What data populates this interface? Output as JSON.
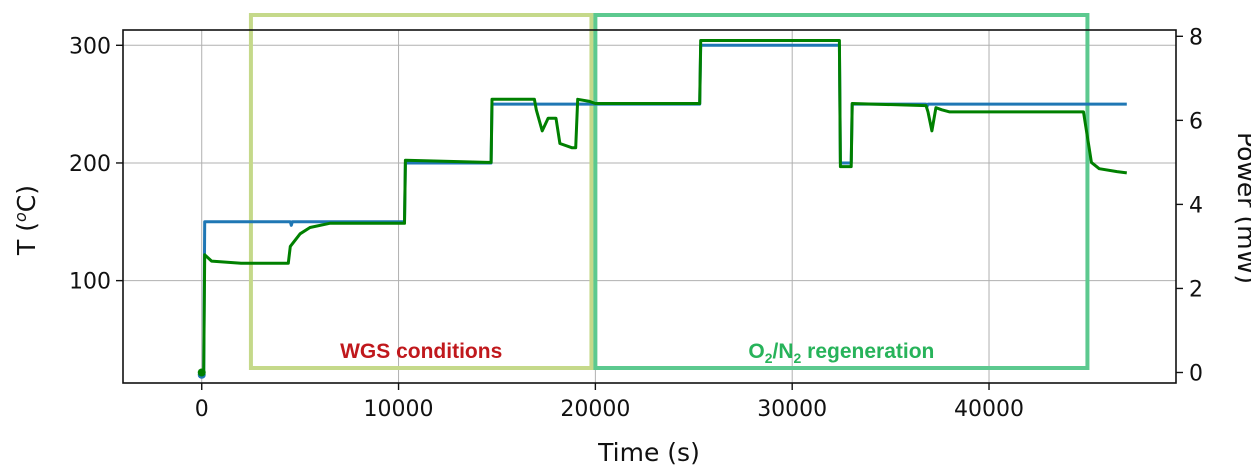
{
  "chart_data": {
    "type": "line",
    "xlabel": "Time (s)",
    "ylabel_left": {
      "main": "T (",
      "sup": "o",
      "unit": "C)"
    },
    "ylabel_right": "Power (mW)",
    "xlim": [
      -4000,
      49500
    ],
    "ylim_left": [
      13,
      313
    ],
    "ylim_right": [
      -0.25,
      8.15
    ],
    "x_ticks": [
      0,
      10000,
      20000,
      30000,
      40000
    ],
    "y_ticks_left": [
      100,
      200,
      300
    ],
    "y_ticks_right": [
      0,
      2,
      4,
      6,
      8
    ],
    "grid": true,
    "colors": {
      "temperature": "#1f77b4",
      "power": "#008000",
      "wgs_box": "#c5d98a",
      "regen_box": "#5cc98f",
      "wgs_text": "#c0181c",
      "regen_text": "#27b35a"
    },
    "regions": [
      {
        "x_start": 2500,
        "x_end": 19800,
        "color": "#c5d98a",
        "label_parts": [
          {
            "t": "WGS conditions"
          }
        ],
        "label_color": "#c0181c"
      },
      {
        "x_start": 20000,
        "x_end": 45000,
        "color": "#5cc98f",
        "label_parts": [
          {
            "t": "O"
          },
          {
            "t": "2",
            "sub": true
          },
          {
            "t": "/N"
          },
          {
            "t": "2",
            "sub": true
          },
          {
            "t": " regeneration"
          }
        ],
        "label_color": "#27b35a"
      }
    ],
    "series": [
      {
        "axis": "left",
        "color": "#1f77b4",
        "points": [
          [
            0,
            20
          ],
          [
            100,
            20
          ],
          [
            150,
            150
          ],
          [
            4500,
            150
          ],
          [
            4550,
            147
          ],
          [
            4600,
            150
          ],
          [
            10300,
            150
          ],
          [
            10350,
            200
          ],
          [
            14700,
            200
          ],
          [
            14750,
            250
          ],
          [
            19600,
            250
          ],
          [
            25300,
            250
          ],
          [
            25350,
            300
          ],
          [
            32400,
            300
          ],
          [
            32450,
            200
          ],
          [
            33000,
            200
          ],
          [
            33050,
            250
          ],
          [
            36800,
            250
          ],
          [
            36850,
            248
          ],
          [
            36900,
            250
          ],
          [
            47000,
            250
          ]
        ]
      },
      {
        "axis": "right",
        "color": "#008000",
        "points": [
          [
            0,
            0.0
          ],
          [
            100,
            0.05
          ],
          [
            150,
            2.8
          ],
          [
            500,
            2.65
          ],
          [
            2000,
            2.6
          ],
          [
            4400,
            2.6
          ],
          [
            4500,
            3.0
          ],
          [
            5000,
            3.3
          ],
          [
            5500,
            3.45
          ],
          [
            6500,
            3.55
          ],
          [
            10300,
            3.55
          ],
          [
            10350,
            5.05
          ],
          [
            14500,
            5.0
          ],
          [
            14700,
            5.0
          ],
          [
            14750,
            6.5
          ],
          [
            16900,
            6.5
          ],
          [
            17000,
            6.25
          ],
          [
            17300,
            5.75
          ],
          [
            17600,
            6.05
          ],
          [
            18000,
            6.05
          ],
          [
            18200,
            5.45
          ],
          [
            18800,
            5.35
          ],
          [
            19000,
            5.35
          ],
          [
            19100,
            6.5
          ],
          [
            19700,
            6.45
          ],
          [
            20000,
            6.4
          ],
          [
            25300,
            6.4
          ],
          [
            25350,
            7.9
          ],
          [
            32400,
            7.9
          ],
          [
            32450,
            4.9
          ],
          [
            32800,
            4.9
          ],
          [
            33000,
            4.9
          ],
          [
            33050,
            6.4
          ],
          [
            36800,
            6.35
          ],
          [
            36900,
            6.2
          ],
          [
            37100,
            5.75
          ],
          [
            37300,
            6.3
          ],
          [
            37600,
            6.25
          ],
          [
            38000,
            6.2
          ],
          [
            44800,
            6.2
          ],
          [
            45200,
            5.0
          ],
          [
            45600,
            4.85
          ],
          [
            46500,
            4.78
          ],
          [
            47000,
            4.75
          ]
        ]
      }
    ]
  }
}
